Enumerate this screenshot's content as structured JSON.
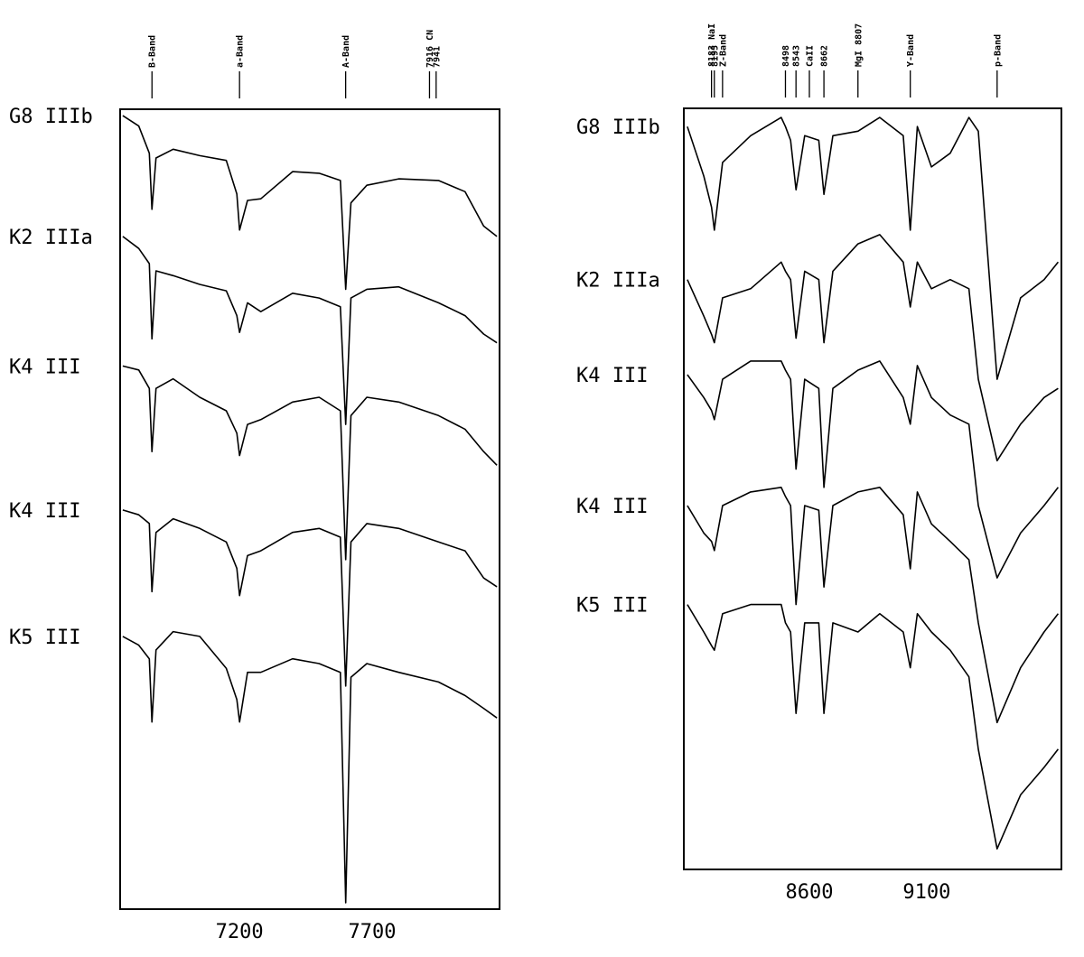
{
  "chart_data": [
    {
      "type": "line",
      "x": [
        6760,
        6820,
        6860,
        6870,
        6885,
        6950,
        7050,
        7150,
        7190,
        7200,
        7230,
        7280,
        7400,
        7500,
        7580,
        7600,
        7620,
        7680,
        7800,
        7950,
        8050,
        8120,
        8170
      ],
      "xlim": [
        6750,
        8180
      ],
      "xticks": [
        7200,
        7700
      ],
      "ylim": [
        0,
        100
      ],
      "series": [
        {
          "name": "G8 IIIb",
          "color": "#000000",
          "values": [
            99.2,
            97.9,
            94.5,
            87.5,
            93.9,
            95.0,
            94.2,
            93.6,
            89.4,
            84.9,
            88.6,
            88.8,
            92.2,
            92.0,
            91.1,
            77.5,
            88.3,
            90.5,
            91.3,
            91.1,
            89.7,
            85.4,
            84.1
          ]
        },
        {
          "name": "K2 IIIa",
          "color": "#000000",
          "values": [
            84.1,
            82.6,
            80.7,
            71.3,
            79.8,
            79.2,
            78.1,
            77.3,
            74.2,
            72.1,
            75.8,
            74.7,
            77.0,
            76.4,
            75.3,
            60.6,
            76.4,
            77.5,
            77.8,
            75.8,
            74.2,
            71.9,
            70.8
          ]
        },
        {
          "name": "K4 III",
          "color": "#000000",
          "values": [
            67.9,
            67.4,
            65.1,
            57.2,
            65.1,
            66.3,
            64.0,
            62.3,
            59.5,
            56.7,
            60.6,
            61.2,
            63.4,
            64.0,
            62.3,
            43.7,
            61.7,
            64.0,
            63.4,
            61.7,
            60.0,
            57.2,
            55.5
          ]
        },
        {
          "name": "K4 III",
          "color": "#000000",
          "values": [
            49.9,
            49.3,
            48.2,
            39.7,
            47.1,
            48.8,
            47.6,
            45.9,
            42.6,
            39.2,
            44.2,
            44.8,
            47.1,
            47.6,
            46.5,
            27.9,
            45.9,
            48.2,
            47.6,
            45.9,
            44.8,
            41.4,
            40.3
          ]
        },
        {
          "name": "K5 III",
          "color": "#000000",
          "values": [
            34.1,
            33.0,
            31.3,
            23.4,
            32.4,
            34.7,
            34.1,
            30.1,
            26.2,
            23.4,
            29.6,
            29.6,
            31.3,
            30.7,
            29.6,
            0.8,
            29.0,
            30.7,
            29.6,
            28.4,
            26.7,
            25.1,
            23.9
          ]
        }
      ],
      "annotations": [
        {
          "label": "B-Band",
          "x": 6870
        },
        {
          "label": "a-Band",
          "x": 7200
        },
        {
          "label": "A-Band",
          "x": 7600
        },
        {
          "label": "7916 CN",
          "x": 7916
        },
        {
          "label": "7941",
          "x": 7941
        }
      ]
    },
    {
      "type": "line",
      "x": [
        8080,
        8150,
        8183,
        8195,
        8230,
        8350,
        8480,
        8498,
        8520,
        8543,
        8580,
        8640,
        8662,
        8700,
        8807,
        8900,
        9000,
        9030,
        9060,
        9120,
        9200,
        9280,
        9320,
        9400,
        9500,
        9600,
        9660
      ],
      "xlim": [
        8065,
        9674
      ],
      "xticks": [
        8600,
        9100
      ],
      "ylim": [
        0,
        100
      ],
      "series": [
        {
          "name": "G8 IIIb",
          "color": "#000000",
          "values": [
            97.6,
            91.1,
            87.0,
            84.0,
            92.9,
            96.4,
            98.8,
            97.6,
            95.8,
            89.3,
            96.4,
            95.8,
            88.7,
            96.4,
            97.0,
            98.8,
            96.4,
            84.0,
            97.6,
            92.3,
            94.1,
            98.8,
            97.0,
            64.4,
            75.1,
            77.5,
            79.8
          ]
        },
        {
          "name": "K2 IIIa",
          "color": "#000000",
          "values": [
            77.5,
            72.7,
            70.3,
            69.2,
            75.1,
            76.3,
            79.8,
            78.6,
            77.5,
            69.8,
            78.6,
            77.5,
            69.2,
            78.6,
            82.2,
            83.4,
            79.8,
            73.9,
            79.8,
            76.3,
            77.5,
            76.3,
            64.4,
            53.7,
            58.5,
            62.0,
            63.2
          ]
        },
        {
          "name": "K4 III",
          "color": "#000000",
          "values": [
            65.0,
            62.0,
            60.3,
            59.1,
            64.4,
            66.8,
            66.8,
            65.6,
            64.4,
            52.6,
            64.4,
            63.2,
            50.2,
            63.2,
            65.6,
            66.8,
            62.0,
            58.5,
            66.2,
            62.0,
            59.7,
            58.5,
            47.8,
            38.3,
            44.2,
            47.8,
            50.2
          ]
        },
        {
          "name": "K4 III",
          "color": "#000000",
          "values": [
            47.8,
            44.2,
            43.1,
            41.9,
            47.8,
            49.6,
            50.2,
            49.0,
            47.8,
            34.8,
            47.8,
            47.2,
            37.1,
            47.8,
            49.6,
            50.2,
            46.6,
            39.5,
            49.6,
            45.4,
            43.1,
            40.7,
            32.4,
            19.3,
            26.5,
            31.2,
            33.6
          ]
        },
        {
          "name": "K5 III",
          "color": "#000000",
          "values": [
            34.8,
            31.2,
            29.4,
            28.8,
            33.6,
            34.8,
            34.8,
            32.4,
            31.2,
            20.5,
            32.4,
            32.4,
            20.5,
            32.4,
            31.2,
            33.6,
            31.2,
            26.5,
            33.6,
            31.2,
            28.8,
            25.3,
            15.8,
            2.7,
            9.8,
            13.4,
            15.8
          ]
        }
      ],
      "annotations": [
        {
          "label": "8183 NaI",
          "x": 8183
        },
        {
          "label": "8195",
          "x": 8195
        },
        {
          "label": "Z-Band",
          "x": 8230
        },
        {
          "label": "8498",
          "x": 8498
        },
        {
          "label": "8543",
          "x": 8543
        },
        {
          "label": "CaII",
          "x": 8600
        },
        {
          "label": "8662",
          "x": 8662
        },
        {
          "label": "MgI 8807",
          "x": 8807
        },
        {
          "label": "Y-Band",
          "x": 9030
        },
        {
          "label": "p-Band",
          "x": 9400
        }
      ]
    }
  ]
}
